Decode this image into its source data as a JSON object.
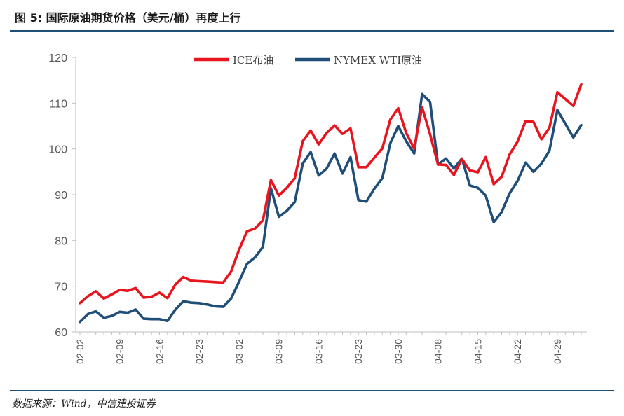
{
  "header": {
    "title": "图 5: 国际原油期货价格（美元/桶）再度上行"
  },
  "footer": {
    "source": "数据来源：Wind，中信建投证券"
  },
  "chart_data": {
    "type": "line",
    "title": "",
    "xlabel": "",
    "ylabel": "",
    "ylim": [
      60,
      120
    ],
    "yticks": [
      60,
      70,
      80,
      90,
      100,
      110,
      120
    ],
    "legend_position": "top-center",
    "grid": false,
    "xtick_labels": [
      "02-02",
      "02-09",
      "02-16",
      "02-23",
      "03-02",
      "03-09",
      "03-16",
      "03-23",
      "03-30",
      "04-08",
      "04-15",
      "04-22",
      "04-29"
    ],
    "xtick_indices": [
      0,
      5,
      10,
      15,
      20,
      25,
      30,
      35,
      40,
      45,
      50,
      55,
      60
    ],
    "series": [
      {
        "name": "ICE布油",
        "color": "#e8141e",
        "values": [
          66.3,
          67.8,
          68.9,
          67.3,
          68.2,
          69.2,
          69.0,
          69.6,
          67.5,
          67.7,
          68.6,
          67.4,
          70.4,
          72.0,
          71.2,
          71.1,
          71.0,
          70.9,
          70.8,
          73.2,
          78.0,
          82.0,
          82.6,
          84.4,
          93.2,
          89.8,
          91.5,
          93.6,
          101.7,
          104.0,
          101.0,
          103.5,
          105.1,
          103.3,
          104.5,
          96.0,
          96.0,
          98.1,
          100.1,
          106.4,
          108.9,
          103.5,
          100.1,
          109.1,
          103.2,
          96.6,
          96.5,
          94.3,
          97.8,
          95.3,
          94.9,
          98.2,
          92.3,
          93.9,
          98.8,
          101.6,
          106.1,
          105.9,
          102.1,
          104.6,
          112.4,
          110.9,
          109.4,
          114.1
        ]
      },
      {
        "name": "NYMEX WTI原油",
        "color": "#1f4e79",
        "values": [
          62.2,
          63.9,
          64.5,
          63.1,
          63.5,
          64.4,
          64.2,
          64.9,
          62.9,
          62.8,
          62.8,
          62.4,
          64.9,
          66.7,
          66.4,
          66.3,
          66.0,
          65.6,
          65.5,
          67.3,
          71.0,
          74.9,
          76.3,
          78.6,
          91.4,
          85.2,
          86.5,
          88.4,
          96.8,
          99.3,
          94.2,
          95.7,
          99.0,
          94.6,
          98.2,
          88.8,
          88.5,
          91.3,
          93.6,
          101.2,
          105.0,
          101.7,
          99.0,
          112.0,
          110.3,
          96.6,
          97.9,
          95.7,
          97.9,
          92.0,
          91.5,
          89.8,
          84.0,
          86.2,
          90.3,
          93.0,
          97.0,
          95.0,
          96.8,
          99.6,
          108.5,
          105.5,
          102.5,
          105.2
        ]
      }
    ]
  }
}
